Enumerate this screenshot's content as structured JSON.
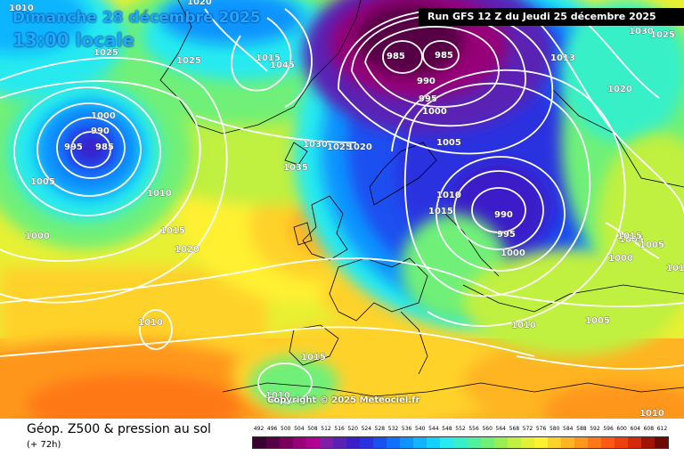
{
  "header": {
    "date_line": "Dimanche 28 décembre 2025",
    "time_line": "13:00 locale",
    "run_info": "Run GFS 12 Z du Jeudi 25 décembre 2025"
  },
  "copyright": "Copyright © 2025 Meteociel.fr",
  "legend": {
    "title": "Géop. Z500 & pression au sol",
    "subtitle": "(+ 72h)",
    "ticks": [
      "492",
      "496",
      "500",
      "504",
      "508",
      "512",
      "516",
      "520",
      "524",
      "528",
      "532",
      "536",
      "540",
      "544",
      "548",
      "552",
      "556",
      "560",
      "564",
      "568",
      "572",
      "576",
      "580",
      "584",
      "588",
      "592",
      "596",
      "600",
      "604",
      "608",
      "612"
    ],
    "colors": [
      "#3a0030",
      "#560045",
      "#7a005e",
      "#960078",
      "#b0008f",
      "#7e1fa5",
      "#5a22b4",
      "#3a1ec8",
      "#2a32e0",
      "#1a50f0",
      "#1070ff",
      "#1094ff",
      "#10b4ff",
      "#14d2ff",
      "#28eaf0",
      "#38f0c8",
      "#50f0a0",
      "#70f078",
      "#98f050",
      "#c0f040",
      "#e4f034",
      "#fff030",
      "#ffd22a",
      "#ffb424",
      "#ff961e",
      "#ff7818",
      "#ff5a14",
      "#f0400e",
      "#d22a0a",
      "#a01406",
      "#6e0802"
    ]
  },
  "map": {
    "pressure_labels": [
      "1010",
      "1020",
      "1025",
      "1015",
      "1045",
      "1025",
      "985",
      "985",
      "990",
      "995",
      "1000",
      "1030",
      "1013",
      "1020",
      "1025",
      "1000",
      "990",
      "985",
      "995",
      "1005",
      "1010",
      "1030",
      "1025",
      "1020",
      "1035",
      "1005",
      "1010",
      "1015",
      "990",
      "995",
      "1000",
      "1015",
      "1020",
      "1005",
      "1005",
      "1000",
      "1010",
      "1015",
      "1005",
      "1010",
      "1000",
      "1010",
      "1015",
      "1010",
      "1010"
    ]
  }
}
